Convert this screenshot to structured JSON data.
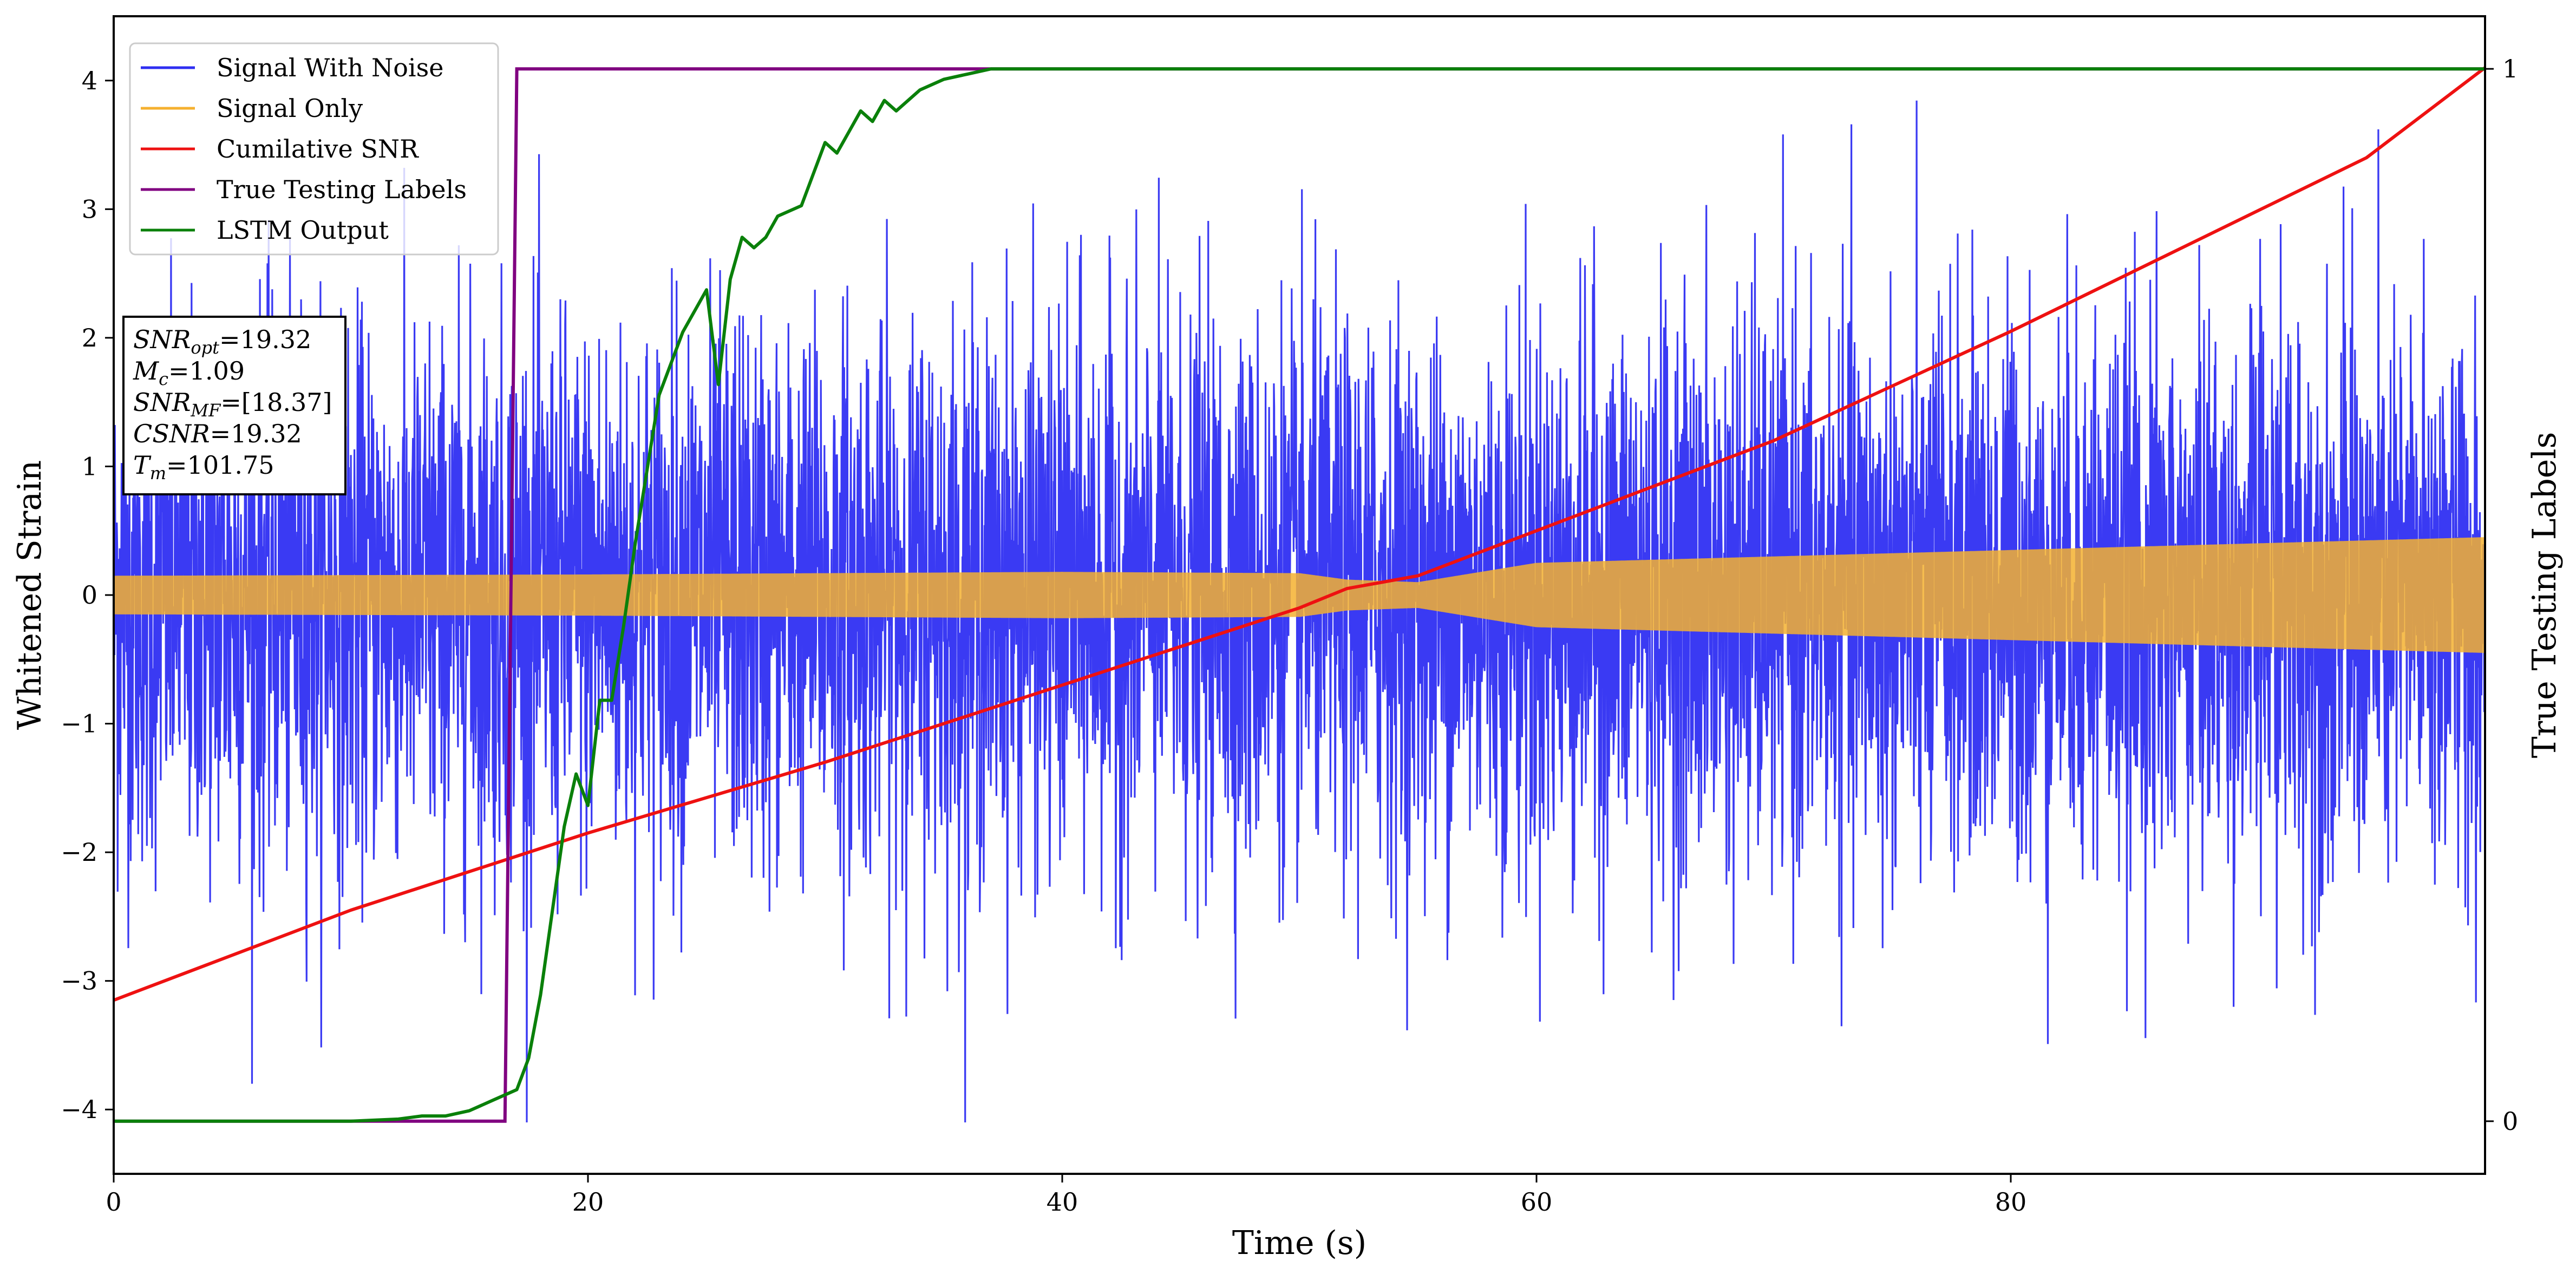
{
  "chart_data": {
    "type": "line",
    "xlabel": "Time (s)",
    "ylabel": "Whitened Strain",
    "y2label": "True Testing Labels",
    "xlim": [
      0,
      100
    ],
    "ylim": [
      -4.5,
      4.5
    ],
    "y2lim": [
      -0.05,
      1.05
    ],
    "x_ticks": [
      "0",
      "20",
      "40",
      "60",
      "80"
    ],
    "y_ticks": [
      "−4",
      "−3",
      "−2",
      "−1",
      "0",
      "1",
      "2",
      "3",
      "4"
    ],
    "y2_ticks": [
      "0",
      "1"
    ],
    "legend_position": "upper-left",
    "series": [
      {
        "name": "Signal With Noise",
        "color": "#2f2ff2",
        "axis": "left",
        "description_values": {
          "std": 1.05,
          "peak_min": -4.1,
          "peak_max": 3.9
        }
      },
      {
        "name": "Signal Only",
        "color": "#f5b130",
        "axis": "left",
        "amplitude_envelope": {
          "x": [
            0,
            20,
            40,
            50,
            52,
            55,
            60,
            80,
            100
          ],
          "y": [
            0.15,
            0.16,
            0.18,
            0.17,
            0.12,
            0.1,
            0.25,
            0.35,
            0.45
          ]
        }
      },
      {
        "name": "Cumilative SNR",
        "color": "#ee1111",
        "axis": "left",
        "x": [
          0,
          10,
          20,
          30,
          40,
          50,
          52,
          55,
          60,
          70,
          80,
          90,
          95,
          100
        ],
        "y": [
          -3.15,
          -2.45,
          -1.85,
          -1.3,
          -0.7,
          -0.1,
          0.05,
          0.15,
          0.5,
          1.2,
          2.05,
          2.95,
          3.4,
          4.1
        ]
      },
      {
        "name": "True Testing Labels",
        "color": "#800080",
        "axis": "right",
        "x": [
          0,
          16.5,
          17.0,
          100
        ],
        "y": [
          0,
          0,
          1,
          1
        ]
      },
      {
        "name": "LSTM Output",
        "color": "#0a800a",
        "axis": "right",
        "x": [
          0,
          10,
          12,
          13,
          14,
          15,
          16,
          17,
          17.5,
          18,
          18.5,
          19,
          19.5,
          20,
          20.5,
          21,
          21.5,
          22,
          22.5,
          23,
          24,
          25,
          25.5,
          26,
          26.5,
          27,
          27.5,
          28,
          29,
          29.5,
          30,
          30.5,
          31,
          31.5,
          32,
          32.5,
          33,
          34,
          35,
          36,
          37,
          40,
          100
        ],
        "y": [
          0,
          0,
          0.002,
          0.005,
          0.005,
          0.01,
          0.02,
          0.03,
          0.06,
          0.12,
          0.2,
          0.28,
          0.33,
          0.3,
          0.4,
          0.4,
          0.47,
          0.55,
          0.62,
          0.69,
          0.75,
          0.79,
          0.7,
          0.8,
          0.84,
          0.83,
          0.84,
          0.86,
          0.87,
          0.9,
          0.93,
          0.92,
          0.94,
          0.96,
          0.95,
          0.97,
          0.96,
          0.98,
          0.99,
          0.995,
          1.0,
          1.0,
          1.0
        ]
      }
    ]
  },
  "annotation": {
    "lines": [
      {
        "sym": "SNR",
        "sub": "opt",
        "value": "=19.32"
      },
      {
        "sym": "M",
        "sub": "c",
        "value": "=1.09"
      },
      {
        "sym": "SNR",
        "sub": "MF",
        "value": "=[18.37]"
      },
      {
        "sym": "CSNR",
        "sub": "",
        "value": "=19.32"
      },
      {
        "sym": "T",
        "sub": "m",
        "value": "=101.75"
      }
    ]
  }
}
